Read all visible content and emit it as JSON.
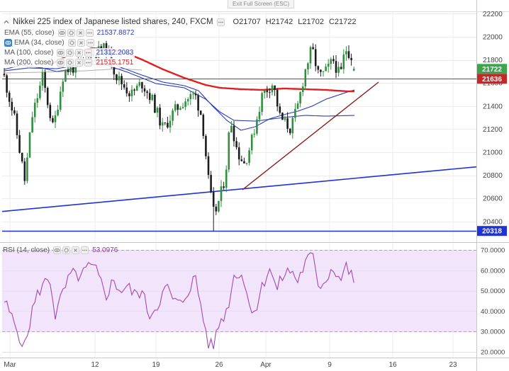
{
  "window": {
    "exit_fullscreen_label": "Exit Full Screen (ESC)"
  },
  "legend": {
    "title": "Nikkei 225 index of Japanese listed shares, 240, FXCM",
    "ohlc": [
      {
        "key": "O",
        "value": "21707"
      },
      {
        "key": "H",
        "value": "21742"
      },
      {
        "key": "L",
        "value": "21702"
      },
      {
        "key": "C",
        "value": "21722"
      }
    ],
    "indicators": [
      {
        "label": "EMA (55, close)",
        "value": "21537.8872",
        "color": "#2b3db8"
      },
      {
        "label": "EMA (34, close)",
        "value": "",
        "color": "#555555"
      },
      {
        "label": "MA (100, close)",
        "value": "21312.2083",
        "color": "#2b3db8"
      },
      {
        "label": "MA (200, close)",
        "value": "21515.1751",
        "color": "#d42020"
      }
    ],
    "rsi": {
      "label": "RSI (14, close)",
      "value": "53.0976",
      "color": "#8e3aa0"
    }
  },
  "colors": {
    "up_candle": "#2f8f3e",
    "down_candle": "#1c1c1c",
    "last_price_box": "#3aa84a",
    "resistance_line": "#c62828",
    "support_line": "#1f32d6",
    "ma_200": "#e02020",
    "ma_blue": "#2b3db8",
    "trendline": "#8b1a1a",
    "rsi_line": "#a04ab3",
    "rsi_band": "#f1e4fb"
  },
  "chart_data": {
    "type": "bar",
    "bar_style": "candlestick",
    "instrument": "Nikkei 225 index of Japanese listed shares",
    "timeframe": "240",
    "source": "FXCM",
    "last_candle": {
      "open": 21707,
      "high": 21742,
      "low": 21702,
      "close": 21722
    },
    "price_axis": {
      "ticks": [
        "22200",
        "22000",
        "21800",
        "21600",
        "21400",
        "21200",
        "21000",
        "20800",
        "20600",
        "20400"
      ],
      "range": [
        20290,
        22230
      ]
    },
    "price_levels": [
      {
        "value": 21722,
        "label": "21722",
        "kind": "last-price"
      },
      {
        "value": 21636,
        "label": "21636",
        "kind": "resistance"
      },
      {
        "value": 20318,
        "label": "20318",
        "kind": "support"
      }
    ],
    "time_axis": {
      "labels": [
        "Mar",
        "12",
        "19",
        "26",
        "Apr",
        "9",
        "16",
        "23"
      ]
    },
    "rsi": {
      "period": 14,
      "last_value": 53.0976,
      "ticks": [
        "70.0000",
        "60.0000",
        "50.0000",
        "40.0000",
        "30.0000",
        "20.0000"
      ],
      "upper_band": 70,
      "lower_band": 30,
      "range": [
        18,
        72
      ]
    },
    "grid": true
  }
}
